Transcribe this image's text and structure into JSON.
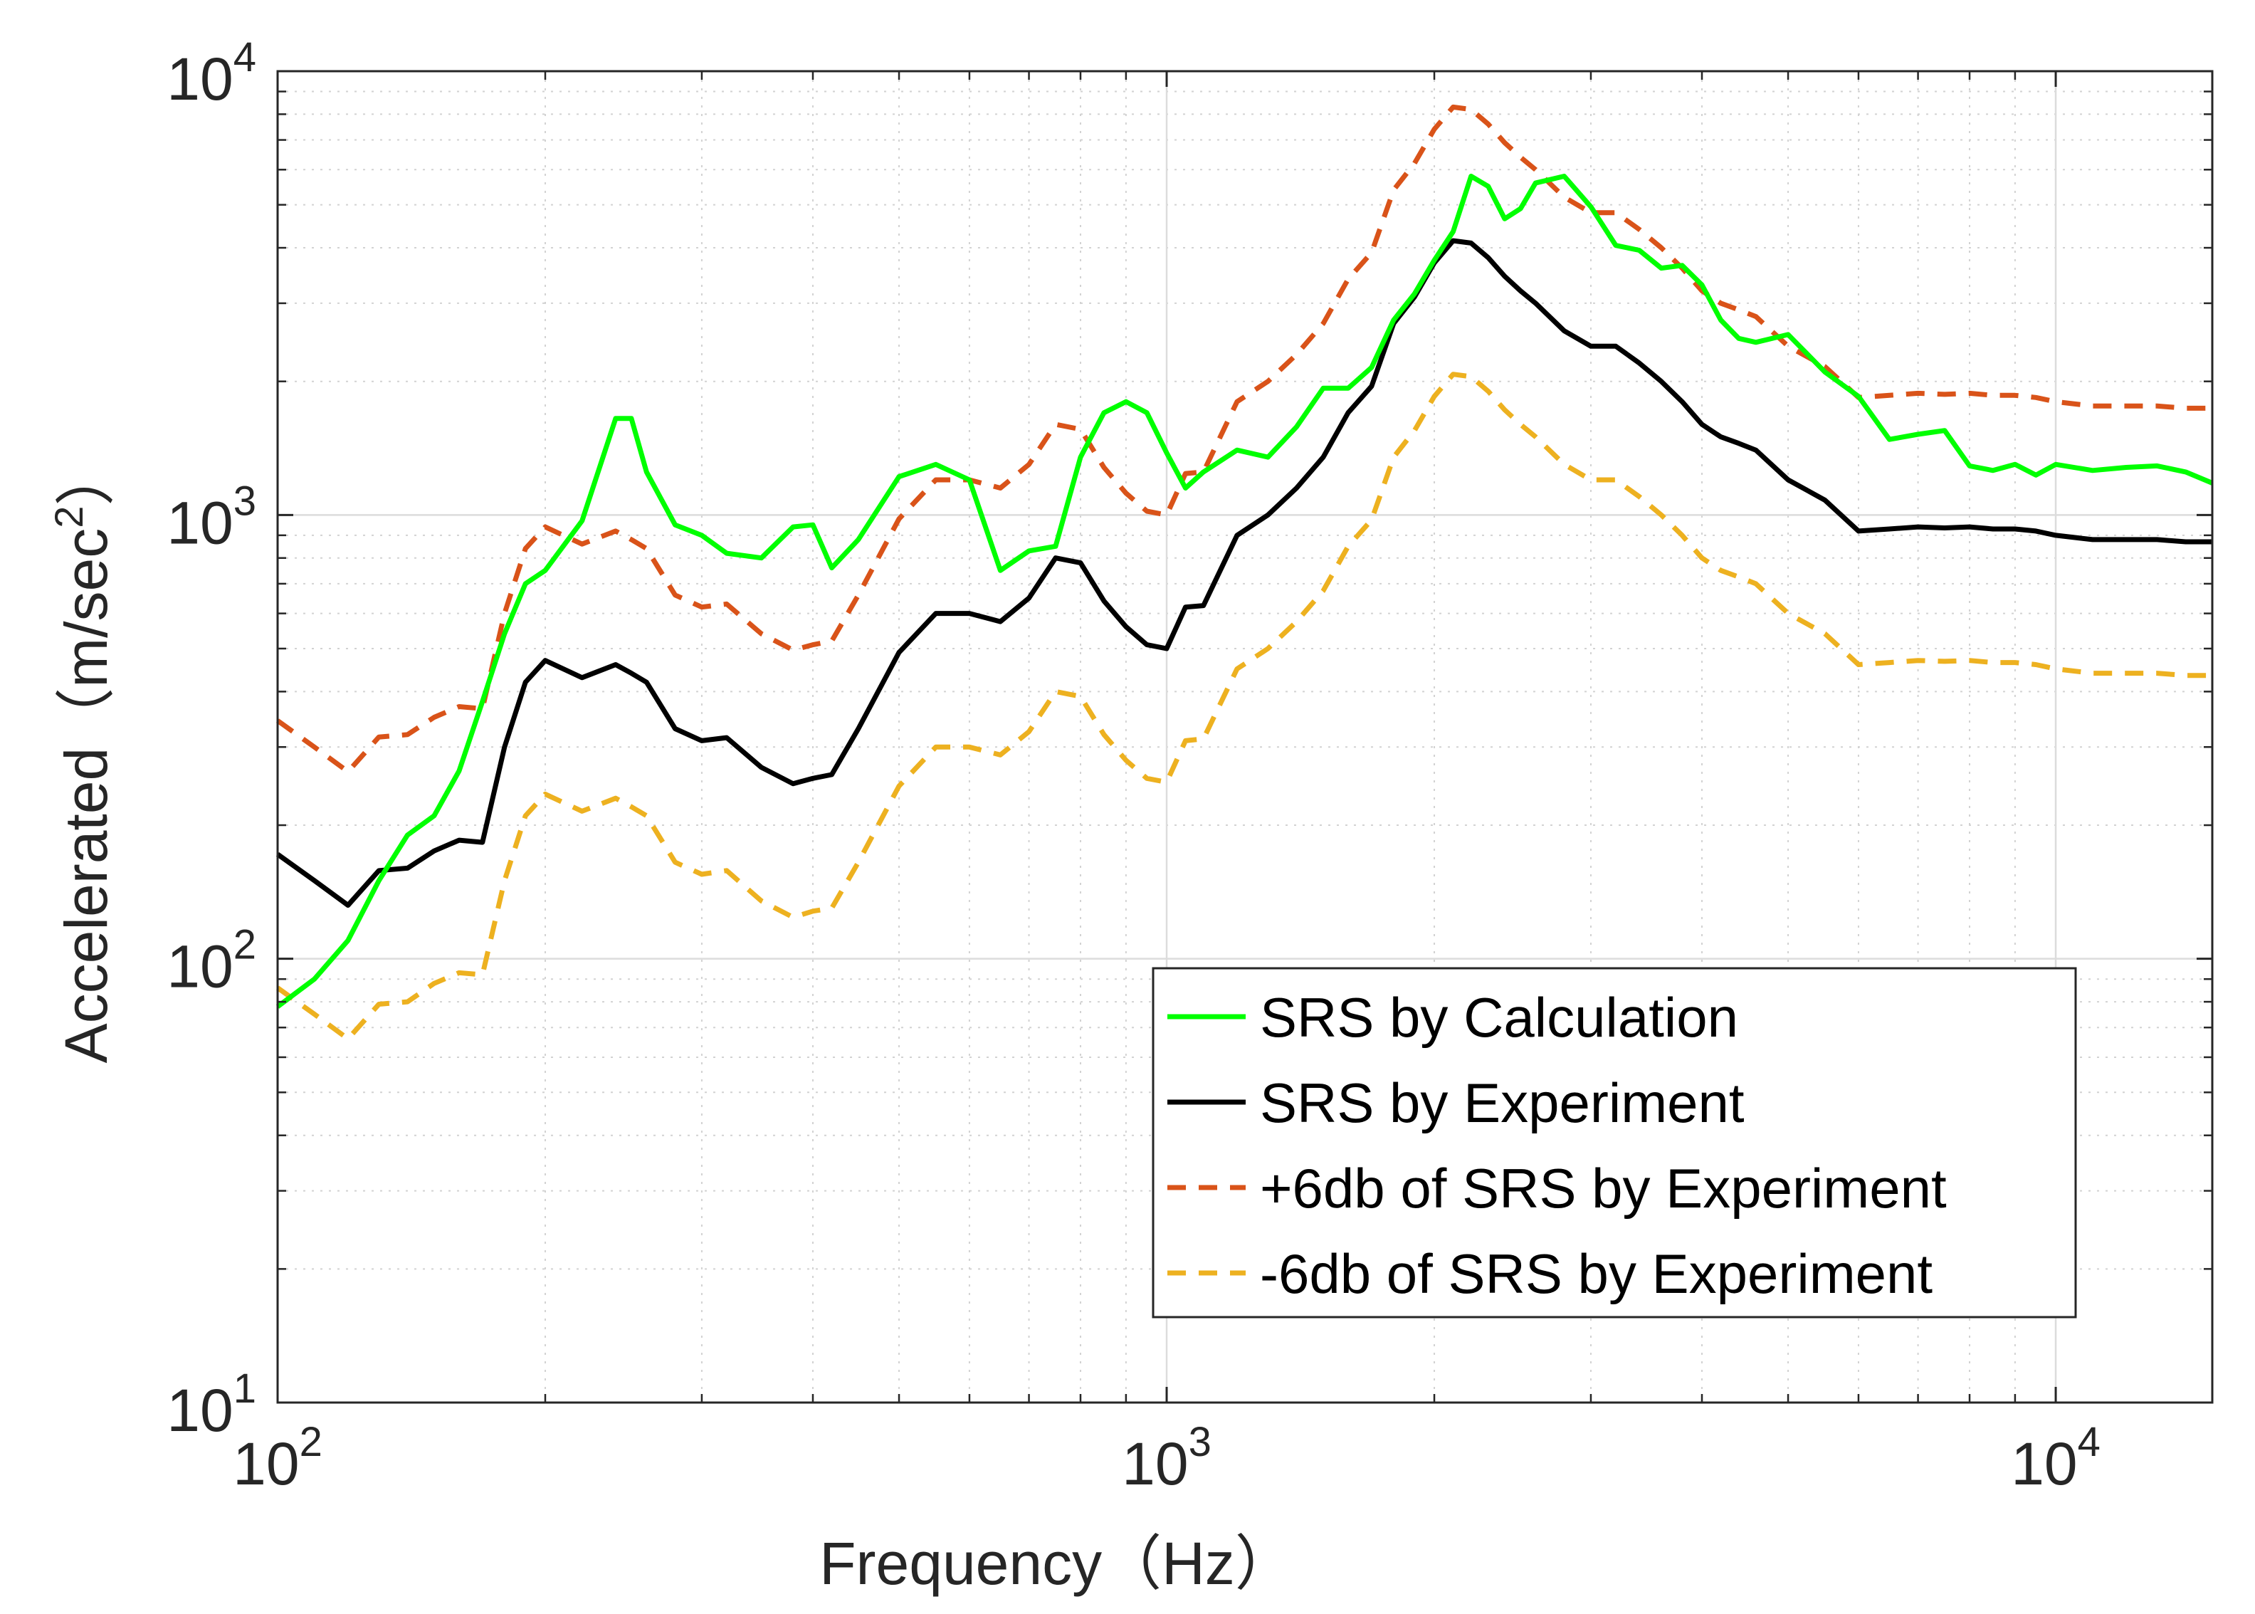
{
  "chart_data": {
    "type": "line",
    "xscale": "log",
    "yscale": "log",
    "xlim": [
      100,
      15000
    ],
    "ylim": [
      10,
      10000
    ],
    "xlabel": "Frequency（Hz）",
    "ylabel_main": "Accelerated（m/sec",
    "ylabel_sup": "2",
    "ylabel_end": "）",
    "grid": true,
    "legend_position": "lower-right",
    "xticks": [
      {
        "base": "10",
        "exp": "2",
        "value": 100
      },
      {
        "base": "10",
        "exp": "3",
        "value": 1000
      },
      {
        "base": "10",
        "exp": "4",
        "value": 10000
      }
    ],
    "yticks": [
      {
        "base": "10",
        "exp": "1",
        "value": 10
      },
      {
        "base": "10",
        "exp": "2",
        "value": 100
      },
      {
        "base": "10",
        "exp": "3",
        "value": 1000
      },
      {
        "base": "10",
        "exp": "4",
        "value": 10000
      }
    ],
    "series": [
      {
        "name": "SRS by Calculation",
        "color": "#00ff00",
        "dash": "solid",
        "x": [
          100,
          110,
          120,
          130,
          140,
          150,
          160,
          170,
          180,
          190,
          200,
          220,
          240,
          250,
          260,
          280,
          300,
          320,
          350,
          380,
          400,
          420,
          450,
          500,
          550,
          600,
          650,
          700,
          750,
          800,
          850,
          900,
          950,
          1000,
          1050,
          1100,
          1200,
          1300,
          1400,
          1500,
          1600,
          1700,
          1800,
          1900,
          2000,
          2100,
          2200,
          2300,
          2400,
          2500,
          2600,
          2800,
          3000,
          3200,
          3400,
          3600,
          3800,
          4000,
          4200,
          4400,
          4600,
          5000,
          5500,
          6000,
          6500,
          7000,
          7500,
          8000,
          8500,
          9000,
          9500,
          10000,
          11000,
          12000,
          13000,
          14000,
          15000
        ],
        "y": [
          78,
          90,
          110,
          150,
          190,
          210,
          265,
          380,
          540,
          700,
          750,
          970,
          1650,
          1650,
          1250,
          950,
          900,
          820,
          800,
          940,
          950,
          760,
          880,
          1220,
          1300,
          1200,
          750,
          830,
          850,
          1350,
          1700,
          1800,
          1700,
          1380,
          1150,
          1250,
          1400,
          1350,
          1580,
          1930,
          1930,
          2150,
          2750,
          3150,
          3750,
          4350,
          5800,
          5500,
          4650,
          4900,
          5600,
          5800,
          4950,
          4050,
          3950,
          3600,
          3650,
          3300,
          2750,
          2500,
          2450,
          2550,
          2100,
          1850,
          1480,
          1520,
          1550,
          1290,
          1260,
          1300,
          1230,
          1300,
          1260,
          1280,
          1290,
          1250,
          1180
        ]
      },
      {
        "name": "SRS by Experiment",
        "color": "#000000",
        "dash": "solid",
        "x": [
          100,
          110,
          120,
          130,
          140,
          150,
          160,
          170,
          180,
          190,
          200,
          220,
          240,
          250,
          260,
          280,
          300,
          320,
          350,
          380,
          400,
          420,
          450,
          500,
          550,
          600,
          650,
          700,
          750,
          800,
          850,
          900,
          950,
          1000,
          1050,
          1100,
          1200,
          1300,
          1400,
          1500,
          1600,
          1700,
          1800,
          1900,
          2000,
          2100,
          2200,
          2300,
          2400,
          2500,
          2600,
          2800,
          3000,
          3200,
          3400,
          3600,
          3800,
          4000,
          4200,
          4400,
          4600,
          5000,
          5500,
          6000,
          6500,
          7000,
          7500,
          8000,
          8500,
          9000,
          9500,
          10000,
          11000,
          12000,
          13000,
          14000,
          15000
        ],
        "y": [
          172,
          150,
          132,
          158,
          160,
          175,
          185,
          183,
          300,
          420,
          470,
          430,
          460,
          440,
          420,
          330,
          310,
          315,
          270,
          248,
          255,
          260,
          330,
          490,
          600,
          600,
          575,
          650,
          800,
          780,
          640,
          560,
          510,
          500,
          620,
          625,
          900,
          1000,
          1150,
          1350,
          1700,
          1950,
          2700,
          3100,
          3700,
          4150,
          4100,
          3800,
          3450,
          3200,
          3000,
          2600,
          2400,
          2400,
          2200,
          2000,
          1800,
          1600,
          1500,
          1450,
          1400,
          1200,
          1080,
          920,
          930,
          940,
          935,
          940,
          930,
          930,
          920,
          900,
          880,
          880,
          880,
          870,
          870
        ]
      },
      {
        "name": "+6db of SRS by Experiment",
        "color": "#d95319",
        "dash": "dashed",
        "x": [
          100,
          110,
          120,
          130,
          140,
          150,
          160,
          170,
          180,
          190,
          200,
          220,
          240,
          250,
          260,
          280,
          300,
          320,
          350,
          380,
          400,
          420,
          450,
          500,
          550,
          600,
          650,
          700,
          750,
          800,
          850,
          900,
          950,
          1000,
          1050,
          1100,
          1200,
          1300,
          1400,
          1500,
          1600,
          1700,
          1800,
          1900,
          2000,
          2100,
          2200,
          2300,
          2400,
          2500,
          2600,
          2800,
          3000,
          3200,
          3400,
          3600,
          3800,
          4000,
          4200,
          4400,
          4600,
          5000,
          5500,
          6000,
          6500,
          7000,
          7500,
          8000,
          8500,
          9000,
          9500,
          10000,
          11000,
          12000,
          13000,
          14000,
          15000
        ],
        "y": [
          344,
          300,
          264,
          316,
          320,
          350,
          370,
          366,
          600,
          840,
          940,
          860,
          920,
          880,
          840,
          660,
          620,
          630,
          540,
          496,
          510,
          520,
          660,
          980,
          1200,
          1200,
          1150,
          1300,
          1600,
          1560,
          1280,
          1120,
          1020,
          1000,
          1240,
          1250,
          1800,
          2000,
          2300,
          2700,
          3400,
          3900,
          5400,
          6200,
          7400,
          8300,
          8200,
          7600,
          6900,
          6400,
          6000,
          5200,
          4800,
          4800,
          4400,
          4000,
          3600,
          3200,
          3000,
          2900,
          2800,
          2400,
          2160,
          1840,
          1860,
          1880,
          1870,
          1880,
          1860,
          1860,
          1840,
          1800,
          1760,
          1760,
          1760,
          1740,
          1740
        ]
      },
      {
        "name": "-6db of SRS by Experiment",
        "color": "#edb120",
        "dash": "dashed",
        "x": [
          100,
          110,
          120,
          130,
          140,
          150,
          160,
          170,
          180,
          190,
          200,
          220,
          240,
          250,
          260,
          280,
          300,
          320,
          350,
          380,
          400,
          420,
          450,
          500,
          550,
          600,
          650,
          700,
          750,
          800,
          850,
          900,
          950,
          1000,
          1050,
          1100,
          1200,
          1300,
          1400,
          1500,
          1600,
          1700,
          1800,
          1900,
          2000,
          2100,
          2200,
          2300,
          2400,
          2500,
          2600,
          2800,
          3000,
          3200,
          3400,
          3600,
          3800,
          4000,
          4200,
          4400,
          4600,
          5000,
          5500,
          6000,
          6500,
          7000,
          7500,
          8000,
          8500,
          9000,
          9500,
          10000,
          11000,
          12000,
          13000,
          14000,
          15000
        ],
        "y": [
          86,
          75,
          66,
          79,
          80,
          88,
          93,
          92,
          150,
          210,
          235,
          215,
          230,
          220,
          210,
          165,
          155,
          158,
          135,
          124,
          128,
          130,
          165,
          245,
          300,
          300,
          288,
          325,
          400,
          390,
          320,
          280,
          255,
          250,
          310,
          313,
          450,
          500,
          575,
          675,
          850,
          975,
          1350,
          1550,
          1850,
          2075,
          2050,
          1900,
          1725,
          1600,
          1500,
          1300,
          1200,
          1200,
          1100,
          1000,
          900,
          800,
          750,
          725,
          700,
          600,
          540,
          460,
          465,
          470,
          468,
          470,
          465,
          465,
          460,
          450,
          440,
          440,
          440,
          435,
          435
        ]
      }
    ]
  }
}
